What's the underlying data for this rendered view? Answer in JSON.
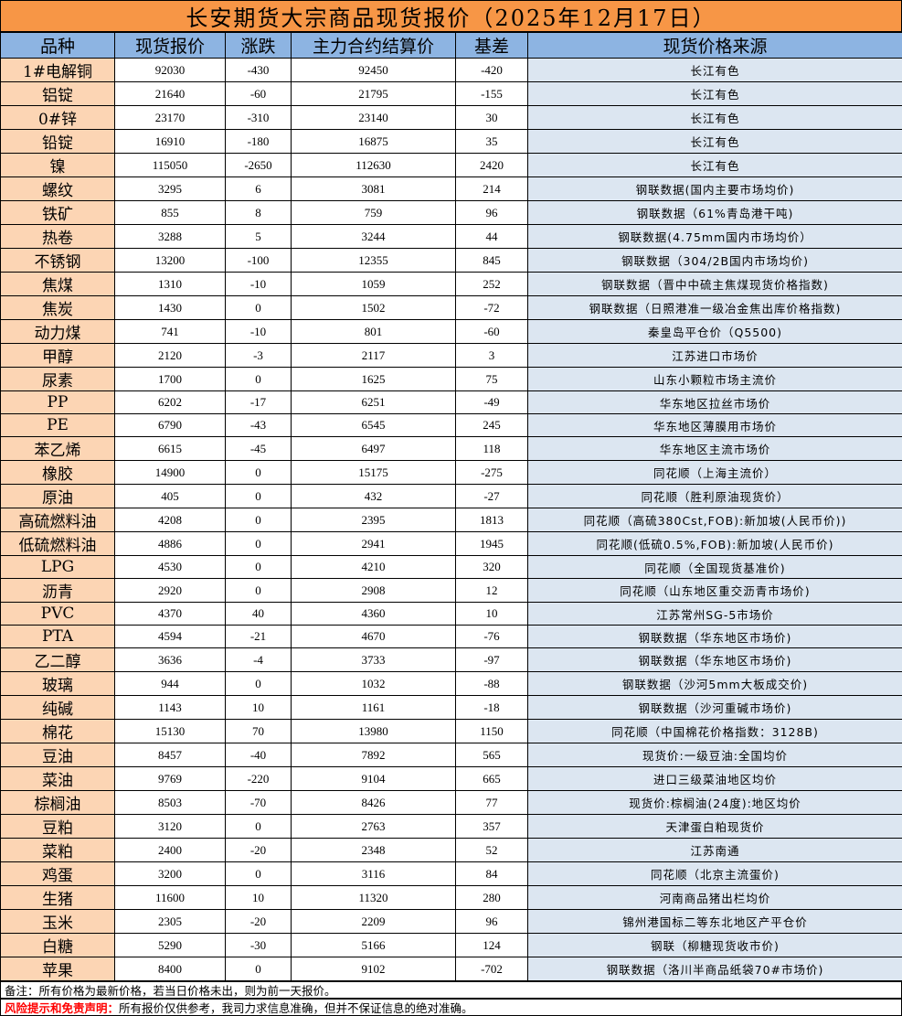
{
  "title": "长安期货大宗商品现货报价（2025年12月17日）",
  "headers": [
    "品种",
    "现货报价",
    "涨跌",
    "主力合约结算价",
    "基差",
    "现货价格来源"
  ],
  "rows": [
    [
      "1#电解铜",
      "92030",
      "-430",
      "92450",
      "-420",
      "长江有色"
    ],
    [
      "铝锭",
      "21640",
      "-60",
      "21795",
      "-155",
      "长江有色"
    ],
    [
      "0#锌",
      "23170",
      "-310",
      "23140",
      "30",
      "长江有色"
    ],
    [
      "铅锭",
      "16910",
      "-180",
      "16875",
      "35",
      "长江有色"
    ],
    [
      "镍",
      "115050",
      "-2650",
      "112630",
      "2420",
      "长江有色"
    ],
    [
      "螺纹",
      "3295",
      "6",
      "3081",
      "214",
      "钢联数据(国内主要市场均价)"
    ],
    [
      "铁矿",
      "855",
      "8",
      "759",
      "96",
      "钢联数据（61%青岛港干吨)"
    ],
    [
      "热卷",
      "3288",
      "5",
      "3244",
      "44",
      "钢联数据(4.75mm国内市场均价）"
    ],
    [
      "不锈钢",
      "13200",
      "-100",
      "12355",
      "845",
      "钢联数据（304/2B国内市场均价)"
    ],
    [
      "焦煤",
      "1310",
      "-10",
      "1059",
      "252",
      "钢联数据（晋中中硫主焦煤现货价格指数)"
    ],
    [
      "焦炭",
      "1430",
      "0",
      "1502",
      "-72",
      "钢联数据（日照港准一级冶金焦出库价格指数)"
    ],
    [
      "动力煤",
      "741",
      "-10",
      "801",
      "-60",
      "秦皇岛平仓价（Q5500)"
    ],
    [
      "甲醇",
      "2120",
      "-3",
      "2117",
      "3",
      "江苏进口市场价"
    ],
    [
      "尿素",
      "1700",
      "0",
      "1625",
      "75",
      "山东小颗粒市场主流价"
    ],
    [
      "PP",
      "6202",
      "-17",
      "6251",
      "-49",
      "华东地区拉丝市场价"
    ],
    [
      "PE",
      "6790",
      "-43",
      "6545",
      "245",
      "华东地区薄膜用市场价"
    ],
    [
      "苯乙烯",
      "6615",
      "-45",
      "6497",
      "118",
      "华东地区主流市场价"
    ],
    [
      "橡胶",
      "14900",
      "0",
      "15175",
      "-275",
      "同花顺（上海主流价）"
    ],
    [
      "原油",
      "405",
      "0",
      "432",
      "-27",
      "同花顺（胜利原油现货价）"
    ],
    [
      "高硫燃料油",
      "4208",
      "0",
      "2395",
      "1813",
      "同花顺（高硫380Cst,FOB):新加坡(人民币价))"
    ],
    [
      "低硫燃料油",
      "4886",
      "0",
      "2941",
      "1945",
      "同花顺(低硫0.5%,FOB):新加坡(人民币价)"
    ],
    [
      "LPG",
      "4530",
      "0",
      "4210",
      "320",
      "同花顺（全国现货基准价)"
    ],
    [
      "沥青",
      "2920",
      "0",
      "2908",
      "12",
      "同花顺（山东地区重交沥青市场价)"
    ],
    [
      "PVC",
      "4370",
      "40",
      "4360",
      "10",
      "江苏常州SG-5市场价"
    ],
    [
      "PTA",
      "4594",
      "-21",
      "4670",
      "-76",
      "钢联数据（华东地区市场价)"
    ],
    [
      "乙二醇",
      "3636",
      "-4",
      "3733",
      "-97",
      "钢联数据（华东地区市场价)"
    ],
    [
      "玻璃",
      "944",
      "0",
      "1032",
      "-88",
      "钢联数据（沙河5mm大板成交价)"
    ],
    [
      "纯碱",
      "1143",
      "10",
      "1161",
      "-18",
      "钢联数据（沙河重碱市场价)"
    ],
    [
      "棉花",
      "15130",
      "70",
      "13980",
      "1150",
      "同花顺（中国棉花价格指数：3128B)"
    ],
    [
      "豆油",
      "8457",
      "-40",
      "7892",
      "565",
      "现货价:一级豆油:全国均价"
    ],
    [
      "菜油",
      "9769",
      "-220",
      "9104",
      "665",
      "进口三级菜油地区均价"
    ],
    [
      "棕榈油",
      "8503",
      "-70",
      "8426",
      "77",
      "现货价:棕榈油(24度):地区均价"
    ],
    [
      "豆粕",
      "3120",
      "0",
      "2763",
      "357",
      "天津蛋白粕现货价"
    ],
    [
      "菜粕",
      "2400",
      "-20",
      "2348",
      "52",
      "江苏南通"
    ],
    [
      "鸡蛋",
      "3200",
      "0",
      "3116",
      "84",
      "同花顺（北京主流蛋价)"
    ],
    [
      "生猪",
      "11600",
      "10",
      "11320",
      "280",
      "河南商品猪出栏均价"
    ],
    [
      "玉米",
      "2305",
      "-20",
      "2209",
      "96",
      "锦州港国标二等东北地区产平仓价"
    ],
    [
      "白糖",
      "5290",
      "-30",
      "5166",
      "124",
      "钢联（柳糖现货收市价)"
    ],
    [
      "苹果",
      "8400",
      "0",
      "9102",
      "-702",
      "钢联数据（洛川半商品纸袋70#市场价)"
    ]
  ],
  "note": "备注：所有价格为最新价格，若当日价格未出，则为前一天报价。",
  "disclaimer": {
    "label": "风险提示和免责声明：",
    "text": "所有报价仅供参考，我司力求信息准确，但并不保证信息的绝对准确。"
  },
  "colors": {
    "title_bg": "#f79646",
    "header_bg": "#8db4e2",
    "name_bg": "#fcd5b4",
    "source_bg": "#dce6f1",
    "disclaimer_label": "#ff0000"
  }
}
